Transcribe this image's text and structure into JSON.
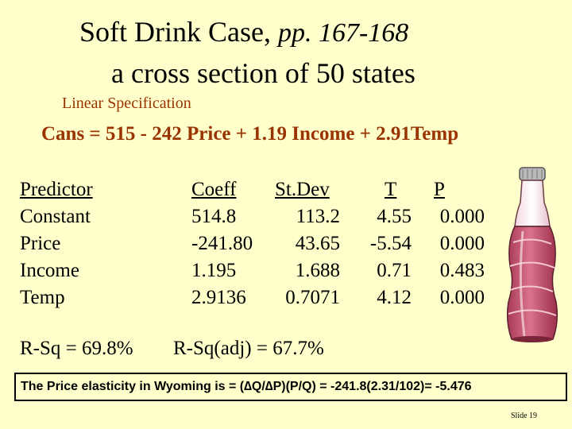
{
  "title": {
    "main": "Soft Drink Case,",
    "pages": "pp. 167-168",
    "subtitle": "a cross section of 50 states"
  },
  "specification_label": "Linear Specification",
  "equation": "Cans = 515 - 242 Price + 1.19 Income + 2.91Temp",
  "table": {
    "headers": {
      "predictor": "Predictor",
      "coeff": "Coeff",
      "stdev": "St.Dev",
      "t": "T",
      "p": "P"
    },
    "rows": [
      {
        "predictor": "Constant",
        "coeff": "514.8",
        "stdev": "113.2",
        "t": "4.55",
        "p": "0.000"
      },
      {
        "predictor": "Price",
        "coeff": "-241.80",
        "stdev": "43.65",
        "t": "-5.54",
        "p": "0.000"
      },
      {
        "predictor": "Income",
        "coeff": "1.195",
        "stdev": "1.688",
        "t": "0.71",
        "p": "0.483"
      },
      {
        "predictor": "Temp",
        "coeff": "2.9136",
        "stdev": "0.7071",
        "t": "4.12",
        "p": "0.000"
      }
    ]
  },
  "r_sq": "R-Sq = 69.8%",
  "r_sq_adj": "R-Sq(adj) = 67.7%",
  "note": "The Price elasticity in Wyoming is = (∆Q/∆P)(P/Q) = -241.8(2.31/102)= -5.476",
  "slide_number": "Slide 19",
  "colors": {
    "background": "#FFFFCC",
    "accent": "#993300"
  },
  "image": "soda-bottle-icon"
}
